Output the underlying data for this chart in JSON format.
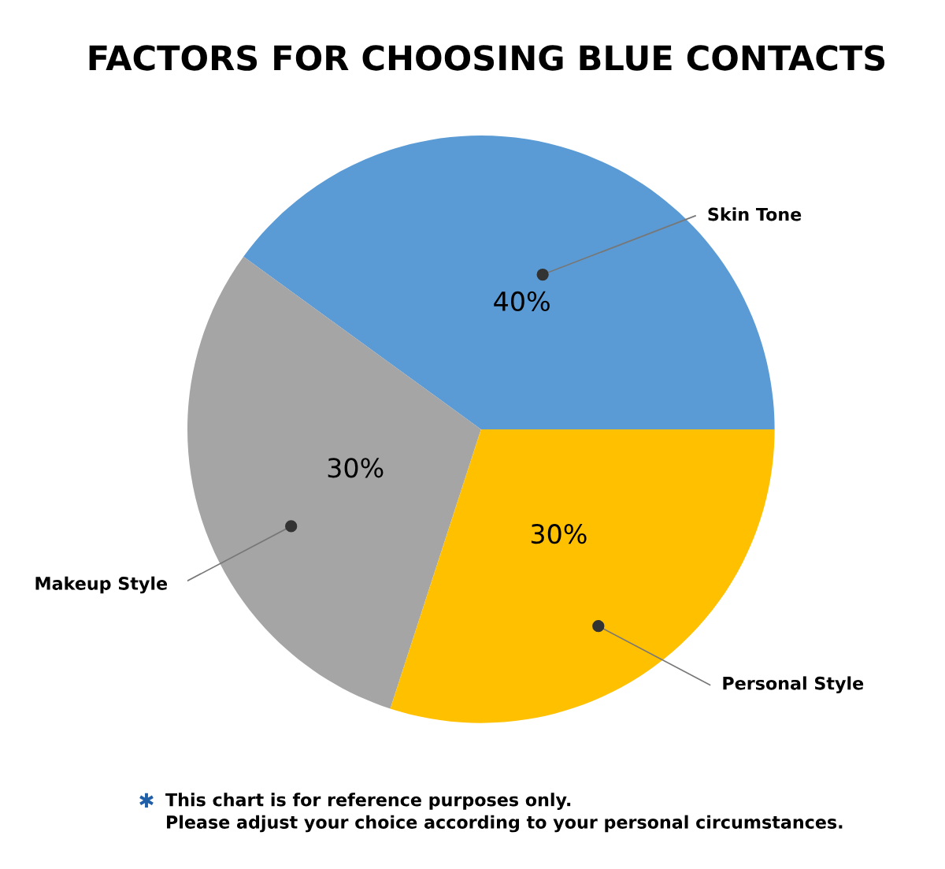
{
  "chart_data": {
    "type": "pie",
    "title": "FACTORS FOR CHOOSING BLUE CONTACTS",
    "categories": [
      "Skin Tone",
      "Makeup Style",
      "Personal Style"
    ],
    "values": [
      40,
      30,
      30
    ],
    "value_labels": [
      "40%",
      "30%",
      "30%"
    ],
    "colors": [
      "#5b9bd5",
      "#a5a5a5",
      "#ffc000"
    ],
    "annotations": [
      "✱",
      "This chart is for reference purposes only.\nPlease adjust your choice according to your personal circumstances."
    ]
  }
}
